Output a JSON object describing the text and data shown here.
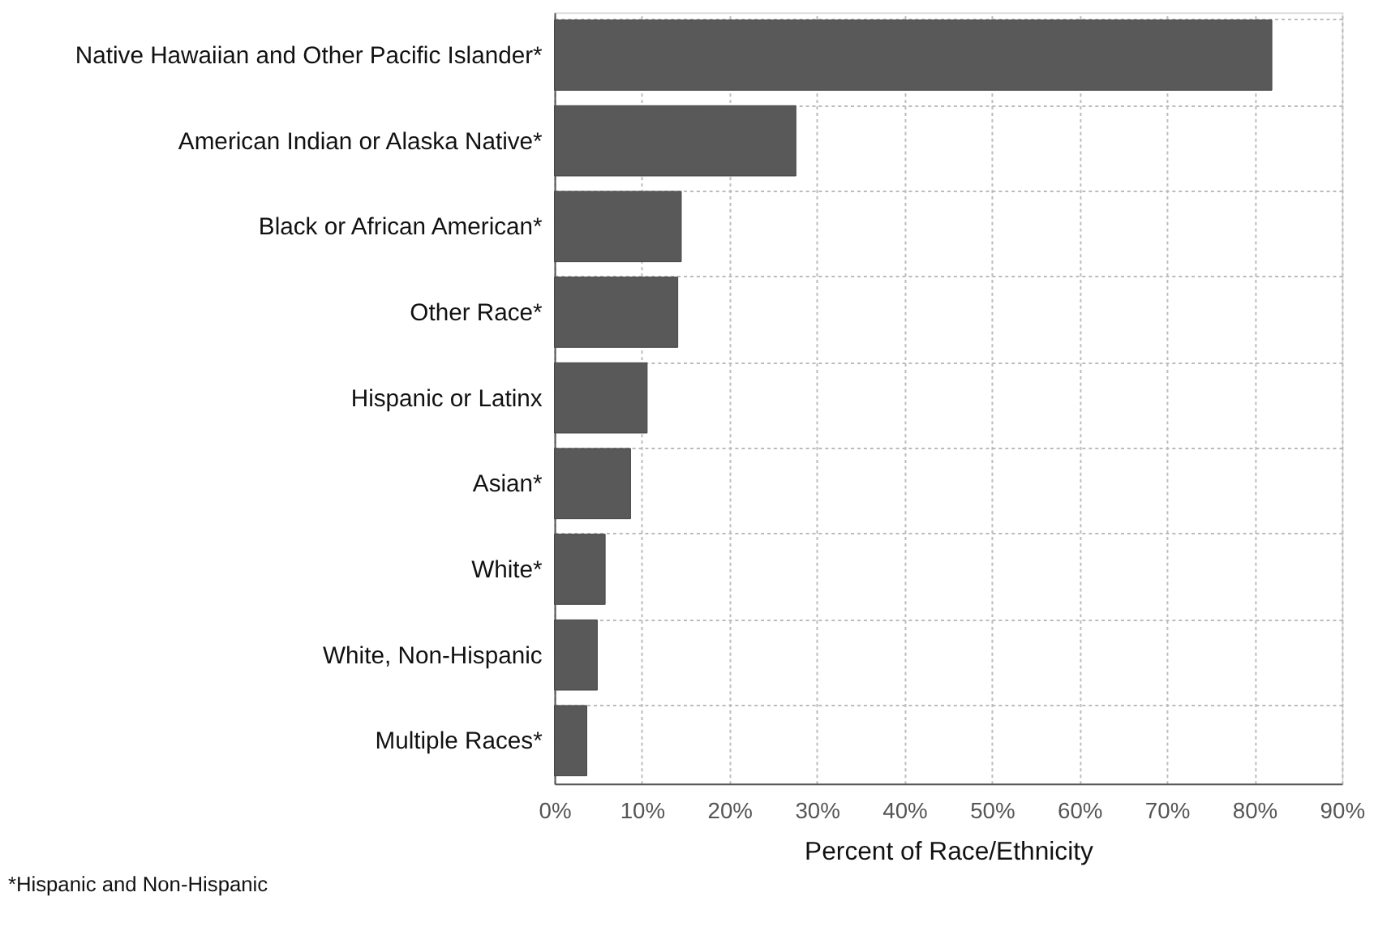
{
  "chart_data": {
    "type": "bar",
    "orientation": "horizontal",
    "xlabel": "Percent of Race/Ethnicity",
    "categories": [
      "Native Hawaiian and Other Pacific Islander*",
      "American Indian or Alaska Native*",
      "Black or African American*",
      "Other Race*",
      "Hispanic or Latinx",
      "Asian*",
      "White*",
      "White, Non-Hispanic",
      "Multiple Races*"
    ],
    "values": [
      82.0,
      27.6,
      14.5,
      14.1,
      10.6,
      8.7,
      5.8,
      4.9,
      3.7
    ],
    "color": "#595959",
    "xlim": [
      0,
      90
    ],
    "xticks": [
      {
        "value": 0,
        "label": "0%"
      },
      {
        "value": 10,
        "label": "10%"
      },
      {
        "value": 20,
        "label": "20%"
      },
      {
        "value": 30,
        "label": "30%"
      },
      {
        "value": 40,
        "label": "40%"
      },
      {
        "value": 50,
        "label": "50%"
      },
      {
        "value": 60,
        "label": "60%"
      },
      {
        "value": 70,
        "label": "70%"
      },
      {
        "value": 80,
        "label": "80%"
      },
      {
        "value": 90,
        "label": "90%"
      }
    ],
    "grid": true,
    "annotations": [
      "*Hispanic and Non-Hispanic"
    ]
  }
}
